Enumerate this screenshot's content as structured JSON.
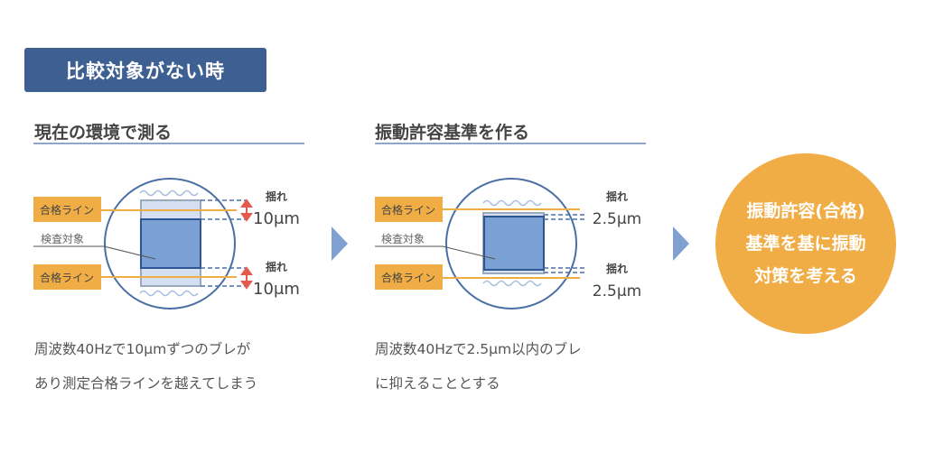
{
  "badge": "比較対象がない時",
  "panels": [
    {
      "heading": "現在の環境で測る",
      "pass_line": "合格ライン",
      "target": "検査対象",
      "sway_label": "揺れ",
      "sway_value": "10μm",
      "desc": [
        "周波数40Hzで10μmずつのブレが",
        "あり測定合格ラインを越えてしまう"
      ]
    },
    {
      "heading": "振動許容基準を作る",
      "pass_line": "合格ライン",
      "target": "検査対象",
      "sway_label": "揺れ",
      "sway_value": "2.5μm",
      "desc": [
        "周波数40Hzで2.5μm以内のブレ",
        "に抑えることとする"
      ]
    }
  ],
  "goal": [
    "振動許容(合格)",
    "基準を基に振動",
    "対策を考える"
  ],
  "colors": {
    "badge": "#3d5f91",
    "orange": "#f0ad45",
    "blue": "#7aa0d4",
    "dark_blue": "#2d5592",
    "red_arrow": "#e55a4e"
  }
}
